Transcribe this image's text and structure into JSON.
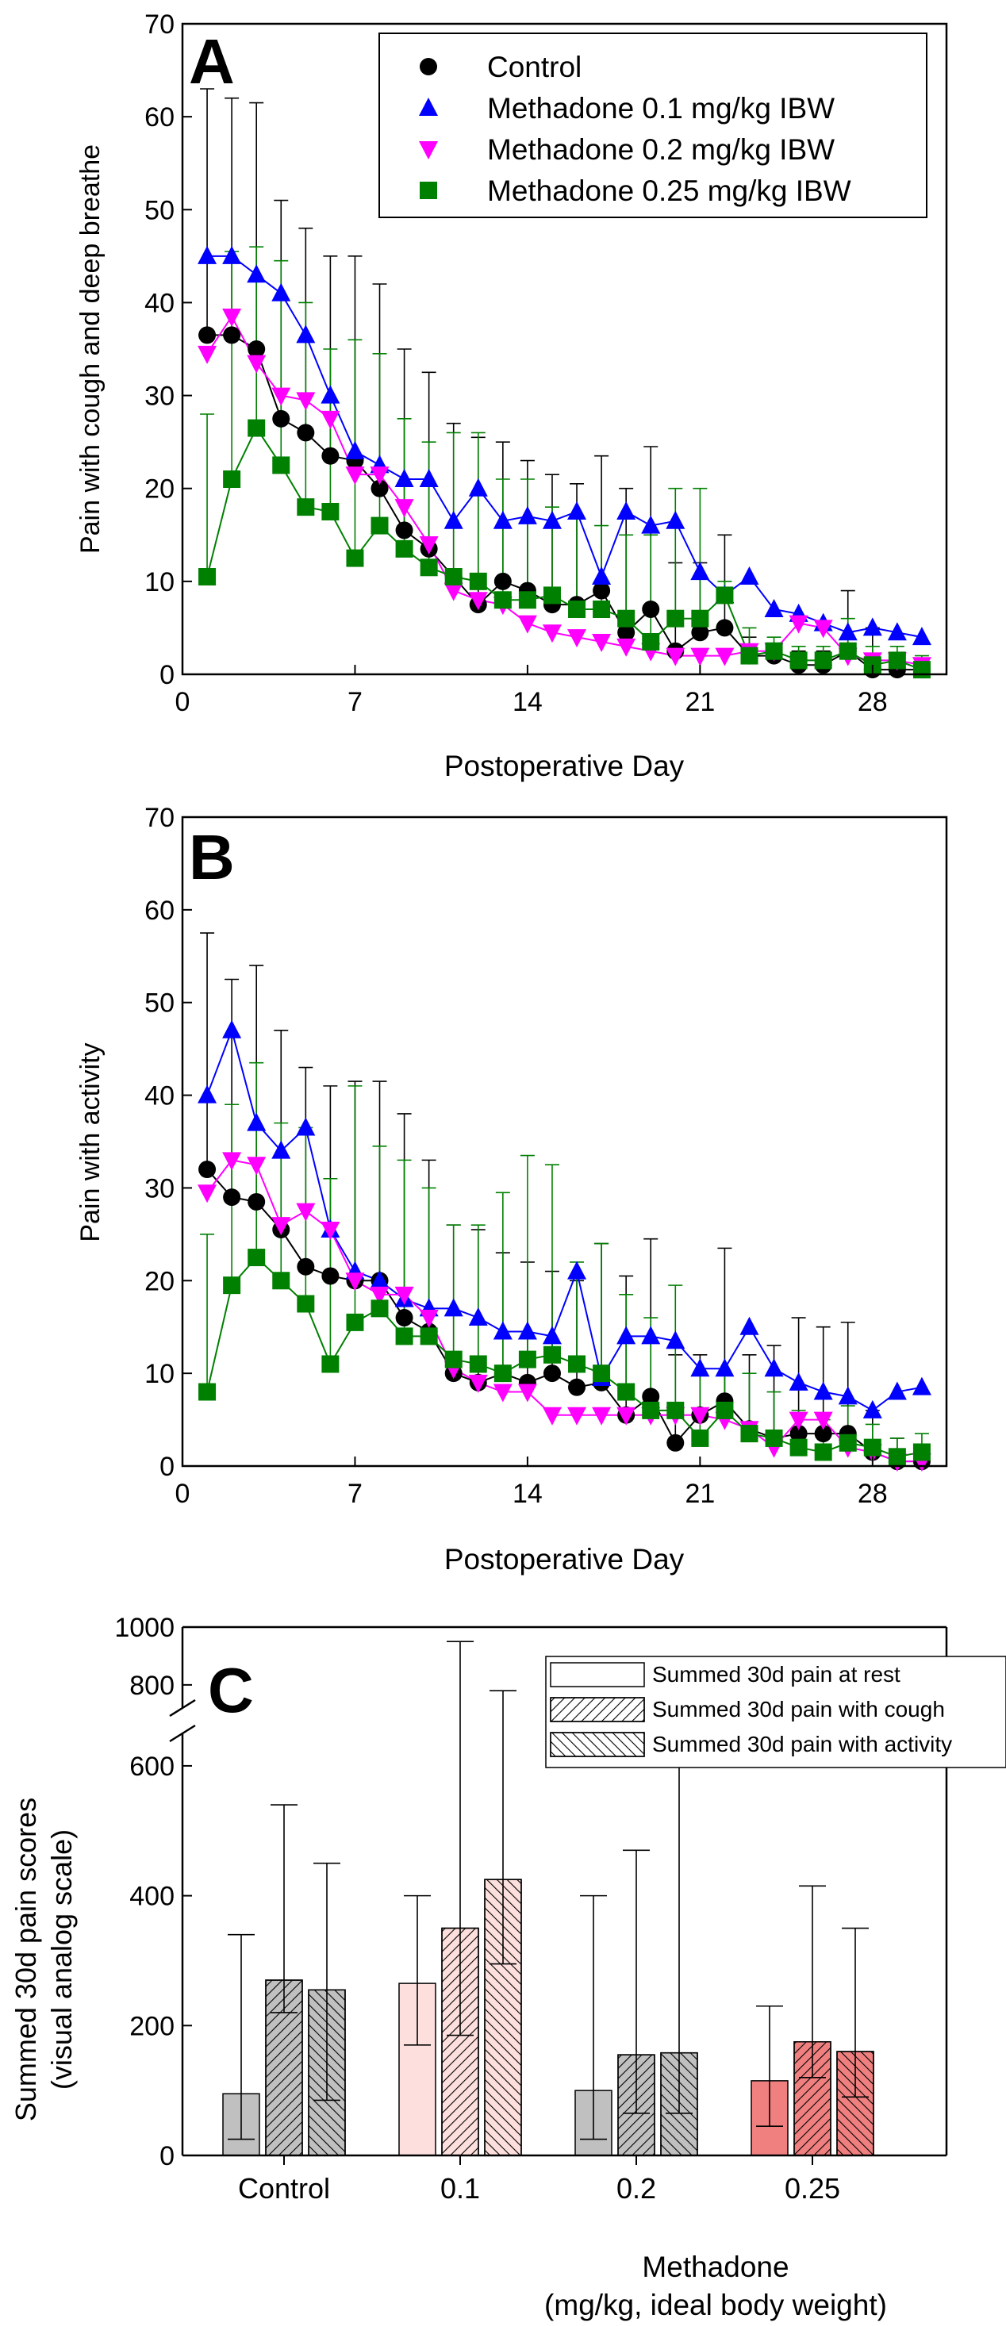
{
  "chart_data": [
    {
      "panel": "A",
      "type": "line",
      "xlabel": "Postoperative Day",
      "ylabel": "Pain with cough and deep breathe",
      "xlim": [
        0,
        31
      ],
      "ylim": [
        0,
        70
      ],
      "xticks": [
        0,
        7,
        14,
        21,
        28
      ],
      "yticks": [
        0,
        10,
        20,
        30,
        40,
        50,
        60,
        70
      ],
      "legend_position": "top-right",
      "x": [
        1,
        2,
        3,
        4,
        5,
        6,
        7,
        8,
        9,
        10,
        11,
        12,
        13,
        14,
        15,
        16,
        17,
        18,
        19,
        20,
        21,
        22,
        23,
        24,
        25,
        26,
        27,
        28,
        29,
        30
      ],
      "series": [
        {
          "name": "Control",
          "color": "#000000",
          "marker": "circle",
          "values": [
            36.5,
            36.5,
            35,
            27.5,
            26,
            23.5,
            23,
            20,
            15.5,
            13.5,
            10.5,
            7.5,
            10,
            9,
            7.5,
            7.5,
            9,
            4.5,
            7,
            2.5,
            4.5,
            5,
            2,
            2,
            1,
            1,
            2.5,
            0.5,
            0.5,
            0.5
          ],
          "error_upper": [
            63,
            62,
            61.5,
            51,
            48,
            45,
            45,
            42,
            35,
            32.5,
            27,
            25.5,
            25,
            23,
            21.5,
            20.5,
            23.5,
            20,
            24.5,
            12,
            12,
            15,
            4,
            3,
            2.5,
            2.5,
            9,
            5,
            2,
            1.5
          ]
        },
        {
          "name": "Methadone 0.1 mg/kg IBW",
          "color": "#0000ff",
          "marker": "triangle-up",
          "values": [
            45,
            45,
            43,
            41,
            36.5,
            30,
            24,
            22.5,
            21,
            21,
            16.5,
            20,
            16.5,
            17,
            16.5,
            17.5,
            10.5,
            17.5,
            16,
            16.5,
            11,
            8.5,
            10.5,
            7,
            6.5,
            5.5,
            4.5,
            5,
            4.5,
            4
          ]
        },
        {
          "name": "Methadone 0.2 mg/kg IBW",
          "color": "#ff00ff",
          "marker": "triangle-down",
          "values": [
            34.5,
            38.5,
            33.5,
            30,
            29.5,
            27.5,
            21.5,
            21.5,
            18,
            14,
            9,
            8,
            7.5,
            5.5,
            4.5,
            4,
            3.5,
            3,
            2.5,
            2,
            2,
            2,
            2.5,
            2.5,
            5.5,
            5,
            2,
            1.5,
            1.5,
            1
          ]
        },
        {
          "name": "Methadone 0.25 mg/kg IBW",
          "color": "#008000",
          "marker": "square",
          "values": [
            10.5,
            21,
            26.5,
            22.5,
            18,
            17.5,
            12.5,
            16,
            13.5,
            11.5,
            10.5,
            10,
            8,
            8,
            8.5,
            7,
            7,
            6,
            3.5,
            6,
            6,
            8.5,
            2,
            2.5,
            1.5,
            1.5,
            2.5,
            1,
            1.5,
            0.5
          ],
          "error_upper": [
            28,
            45.5,
            46,
            44.5,
            40,
            35,
            36,
            34.5,
            27.5,
            25,
            26,
            26,
            21,
            21,
            18,
            17,
            16,
            15,
            15,
            20,
            20,
            10,
            5,
            4,
            3,
            3,
            6,
            3,
            3,
            2
          ]
        }
      ]
    },
    {
      "panel": "B",
      "type": "line",
      "xlabel": "Postoperative Day",
      "ylabel": "Pain with activity",
      "xlim": [
        0,
        31
      ],
      "ylim": [
        0,
        70
      ],
      "xticks": [
        0,
        7,
        14,
        21,
        28
      ],
      "yticks": [
        0,
        10,
        20,
        30,
        40,
        50,
        60,
        70
      ],
      "x": [
        1,
        2,
        3,
        4,
        5,
        6,
        7,
        8,
        9,
        10,
        11,
        12,
        13,
        14,
        15,
        16,
        17,
        18,
        19,
        20,
        21,
        22,
        23,
        24,
        25,
        26,
        27,
        28,
        29,
        30
      ],
      "series": [
        {
          "name": "Control",
          "color": "#000000",
          "marker": "circle",
          "values": [
            32,
            29,
            28.5,
            25.5,
            21.5,
            20.5,
            20,
            20,
            16,
            14.5,
            10,
            9,
            10,
            9,
            10,
            8.5,
            9,
            5.5,
            7.5,
            2.5,
            5.5,
            7,
            4,
            3,
            3.5,
            3.5,
            3.5,
            1.5,
            0.5,
            0.5
          ],
          "error_upper": [
            57.5,
            52.5,
            54,
            47,
            43,
            41,
            41.5,
            41.5,
            38,
            33,
            26,
            25.5,
            23,
            22,
            21,
            20,
            24,
            20.5,
            24.5,
            12,
            12,
            23.5,
            12,
            13,
            16,
            15,
            15.5,
            6,
            3,
            2
          ]
        },
        {
          "name": "Methadone 0.1 mg/kg IBW",
          "color": "#0000ff",
          "marker": "triangle-up",
          "values": [
            40,
            47,
            37,
            34,
            36.5,
            25.5,
            21,
            20,
            18,
            17,
            17,
            16,
            14.5,
            14.5,
            14,
            21,
            9.5,
            14,
            14,
            13.5,
            10.5,
            10.5,
            15,
            10.5,
            9,
            8,
            7.5,
            6,
            8,
            8.5
          ]
        },
        {
          "name": "Methadone 0.2 mg/kg IBW",
          "color": "#ff00ff",
          "marker": "triangle-down",
          "values": [
            29.5,
            33,
            32.5,
            26,
            27.5,
            25.5,
            20,
            18.5,
            18.5,
            16,
            10.5,
            9,
            8,
            8,
            5.5,
            5.5,
            5.5,
            5.5,
            5.5,
            5.5,
            5.5,
            5,
            4,
            2,
            5,
            5,
            2,
            1.5,
            0.5,
            0.5
          ]
        },
        {
          "name": "Methadone 0.25 mg/kg IBW",
          "color": "#008000",
          "marker": "square",
          "values": [
            8,
            19.5,
            22.5,
            20,
            17.5,
            11,
            15.5,
            17,
            14,
            14,
            11.5,
            11,
            10,
            11.5,
            12,
            11,
            10,
            8,
            6,
            6,
            3,
            6,
            3.5,
            3,
            2,
            1.5,
            2.5,
            2,
            1,
            1.5
          ],
          "error_upper": [
            25,
            39,
            43.5,
            37,
            36.5,
            31,
            41,
            34.5,
            33,
            30,
            26,
            26,
            29.5,
            33.5,
            32.5,
            22,
            24,
            18.5,
            16,
            19.5,
            10,
            10,
            10,
            8,
            6,
            5,
            6.5,
            4.5,
            3,
            3.5
          ]
        }
      ]
    },
    {
      "panel": "C",
      "type": "bar",
      "ylabel_line1": "Summed 30d pain scores",
      "ylabel_line2": "(visual analog scale)",
      "xlabel_line1": "Methadone",
      "xlabel_line2": "(mg/kg, ideal body weight)",
      "categories": [
        "Control",
        "0.1",
        "0.2",
        "0.25"
      ],
      "category_colors": [
        "#c0c0c0",
        "#fde0dd",
        "#c0c0c0",
        "#f08080"
      ],
      "ylim_lower": [
        0,
        650
      ],
      "ylim_upper": [
        720,
        1000
      ],
      "yticks_lower": [
        0,
        200,
        400,
        600
      ],
      "yticks_upper": [
        800,
        1000
      ],
      "series": [
        {
          "name": "Summed 30d pain at rest",
          "pattern": "none",
          "values": [
            95,
            265,
            100,
            115
          ],
          "error_low": [
            25,
            170,
            25,
            45
          ],
          "error_high": [
            340,
            400,
            400,
            230
          ]
        },
        {
          "name": "Summed 30d pain with cough",
          "pattern": "forward-diagonal",
          "values": [
            270,
            350,
            155,
            175
          ],
          "error_low": [
            220,
            185,
            65,
            120
          ],
          "error_high": [
            540,
            950,
            470,
            415
          ]
        },
        {
          "name": "Summed 30d pain with activity",
          "pattern": "back-diagonal",
          "values": [
            255,
            425,
            158,
            160
          ],
          "error_low": [
            85,
            295,
            65,
            90
          ],
          "error_high": [
            450,
            780,
            610,
            350
          ]
        }
      ]
    }
  ]
}
